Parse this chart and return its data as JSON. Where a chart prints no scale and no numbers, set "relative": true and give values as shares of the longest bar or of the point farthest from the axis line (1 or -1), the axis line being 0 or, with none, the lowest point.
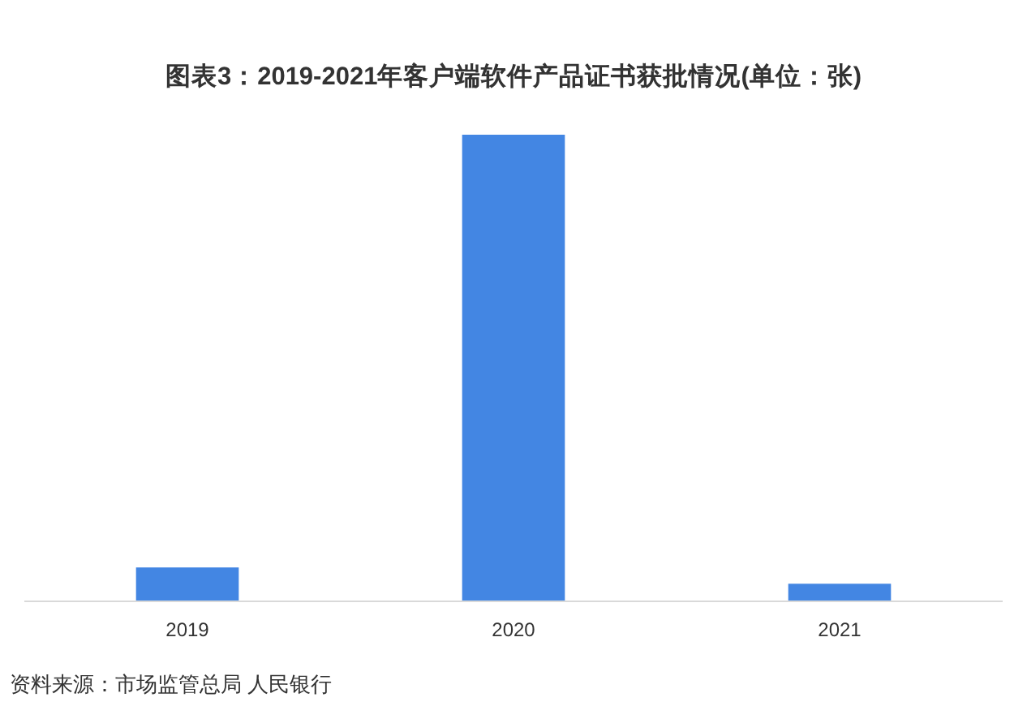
{
  "chart_data": {
    "type": "bar",
    "title": "图表3：2019-2021年客户端软件产品证书获批情况(单位：张)",
    "categories": [
      "2019",
      "2020",
      "2021"
    ],
    "values": [
      0.071,
      1,
      0.036
    ],
    "color": "#4386e3",
    "relative": true,
    "annotations": [
      "资料来源：市场监管总局 人民银行"
    ]
  }
}
